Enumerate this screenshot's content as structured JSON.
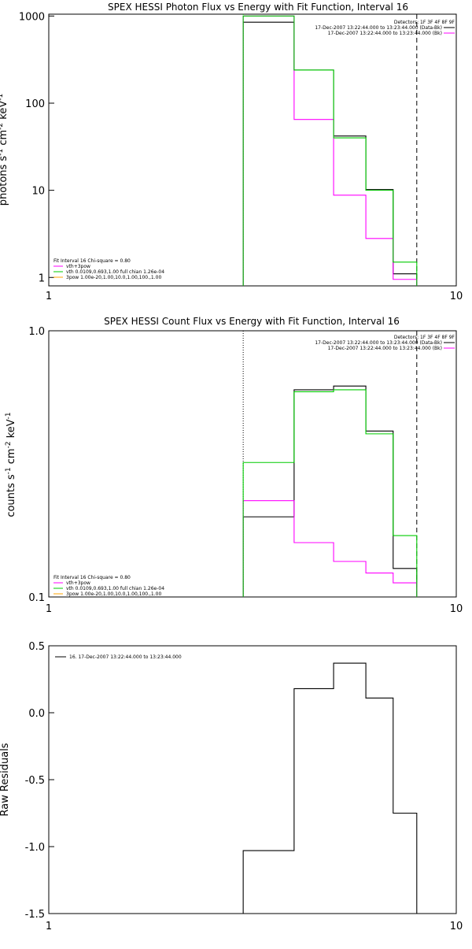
{
  "chart_data": [
    {
      "type": "line",
      "panel": "photon",
      "title": "SPEX HESSI Photon Flux vs Energy with Fit Function, Interval 16",
      "xlabel": "",
      "ylabel": "photons s^-1 cm^-2 keV^-1",
      "x_scale": "log",
      "y_scale": "log",
      "xlim": [
        1,
        10
      ],
      "ylim": [
        0.8,
        1050
      ],
      "x_ticks": [
        "1",
        "10"
      ],
      "y_ticks": [
        {
          "label": "1",
          "value": 1
        },
        {
          "label": "10",
          "value": 10
        },
        {
          "label": "100",
          "value": 100
        },
        {
          "label": "1000",
          "value": 1000
        }
      ],
      "bin_edges": [
        3,
        4,
        5,
        6,
        7,
        8
      ],
      "series": [
        {
          "color": "#000000",
          "values": [
            850,
            240,
            42,
            10.2,
            1.1
          ]
        },
        {
          "color": "#ff00ff",
          "values": [
            1000,
            65,
            8.8,
            2.8,
            0.95
          ]
        },
        {
          "color": "#00cc00",
          "values": [
            1000,
            240,
            40,
            10,
            1.5
          ]
        }
      ],
      "vlines": [
        {
          "x": 3,
          "style": "dotted",
          "color": "#00cc00"
        },
        {
          "x": 8,
          "style": "dashed",
          "color": "#000000"
        }
      ],
      "legend_top": [
        {
          "text": "Detectors: 1F 3F 4F 8F 9F",
          "color": ""
        },
        {
          "text": "17-Dec-2007 13:22:44.000 to 13:23:44.000 (Data-Bk)",
          "color": "#000000"
        },
        {
          "text": "17-Dec-2007 13:22:44.000 to 13:23:44.000 (Bk)",
          "color": "#ff00ff"
        }
      ],
      "legend_bottom": [
        {
          "text": "Fit Interval 16   Chi-square = 0.80",
          "color": ""
        },
        {
          "text": "vth+3pow",
          "color": "#ff00ff"
        },
        {
          "text": "vth 0.0109,0.693,1.00  full chian 1.26e-04",
          "color": "#00cc00"
        },
        {
          "text": "3pow 1.00e-20,1.00,10.0,1.00,100.,1.00",
          "color": "#ffa500"
        }
      ]
    },
    {
      "type": "line",
      "panel": "count",
      "title": "SPEX HESSI Count Flux vs Energy with Fit Function, Interval 16",
      "xlabel": "",
      "ylabel": "counts s^-1 cm^-2 keV^-1",
      "x_scale": "log",
      "y_scale": "log",
      "xlim": [
        1,
        10
      ],
      "ylim": [
        0.1,
        1.0
      ],
      "x_ticks": [
        "1",
        "10"
      ],
      "y_ticks": [
        {
          "label": "0.1",
          "value": 0.1
        },
        {
          "label": "1.0",
          "value": 1.0
        }
      ],
      "bin_edges": [
        3,
        4,
        5,
        6,
        7,
        8
      ],
      "series": [
        {
          "color": "#000000",
          "values": [
            0.2,
            0.6,
            0.62,
            0.42,
            0.128
          ]
        },
        {
          "color": "#ff00ff",
          "values": [
            0.23,
            0.16,
            0.136,
            0.123,
            0.113
          ]
        },
        {
          "color": "#00cc00",
          "values": [
            0.32,
            0.59,
            0.6,
            0.41,
            0.17
          ]
        }
      ],
      "vlines": [
        {
          "x": 3,
          "style": "dotted",
          "color": "#000000"
        },
        {
          "x": 8,
          "style": "dashed",
          "color": "#000000"
        }
      ],
      "legend_top": [
        {
          "text": "Detectors: 1F 3F 4F 8F 9F",
          "color": ""
        },
        {
          "text": "17-Dec-2007 13:22:44.000 to 13:23:44.000 (Data-Bk)",
          "color": "#000000"
        },
        {
          "text": "17-Dec-2007 13:22:44.000 to 13:23:44.000 (Bk)",
          "color": "#ff00ff"
        }
      ],
      "legend_bottom": [
        {
          "text": "Fit Interval 16   Chi-square = 0.80",
          "color": ""
        },
        {
          "text": "vth+3pow",
          "color": "#ff00ff"
        },
        {
          "text": "vth 0.0109,0.693,1.00  full chian 1.26e-04",
          "color": "#00cc00"
        },
        {
          "text": "3pow 1.00e-20,1.00,10.0,1.00,100.,1.00",
          "color": "#ffa500"
        }
      ]
    },
    {
      "type": "line",
      "panel": "residuals",
      "title": "",
      "xlabel": "",
      "ylabel": "Raw Residuals",
      "x_scale": "log",
      "y_scale": "linear",
      "xlim": [
        1,
        10
      ],
      "ylim": [
        -1.5,
        0.5
      ],
      "x_ticks": [
        "1",
        "10"
      ],
      "y_ticks": [
        {
          "label": "0.5",
          "value": 0.5
        },
        {
          "label": "0.0",
          "value": 0.0
        },
        {
          "label": "-0.5",
          "value": -0.5
        },
        {
          "label": "-1.0",
          "value": -1.0
        },
        {
          "label": "-1.5",
          "value": -1.5
        }
      ],
      "bin_edges": [
        3,
        4,
        5,
        6,
        7,
        8
      ],
      "series": [
        {
          "color": "#000000",
          "values": [
            -1.03,
            0.18,
            0.37,
            0.11,
            -0.75
          ]
        }
      ],
      "vlines": [],
      "legend_top": [],
      "legend_bottom": [],
      "legend_residual": {
        "text": "16. 17-Dec-2007 13:22:44.000 to 13:23:44.000",
        "color": "#000000"
      }
    }
  ]
}
